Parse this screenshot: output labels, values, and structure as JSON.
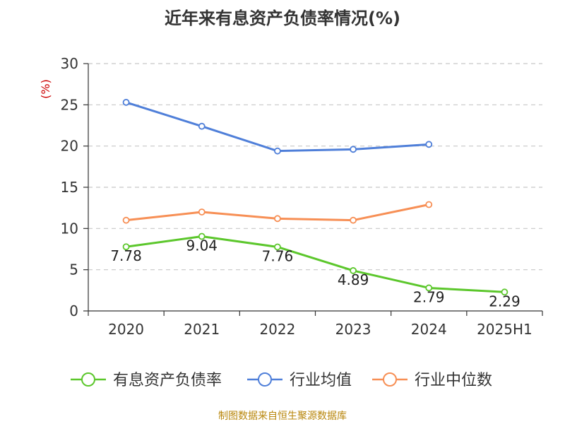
{
  "title": "近年来有息资产负债率情况(%)",
  "source": "制图数据来自恒生聚源数据库",
  "chart_data": {
    "type": "line",
    "title": "近年来有息资产负债率情况(%)",
    "ylabel": "(%)",
    "xlabel": "",
    "categories": [
      "2020",
      "2021",
      "2022",
      "2023",
      "2024",
      "2025H1"
    ],
    "ylim": [
      0,
      30
    ],
    "yticks": [
      0,
      5,
      10,
      15,
      20,
      25,
      30
    ],
    "grid": true,
    "legend": "bottom",
    "series": [
      {
        "name": "有息资产负债率",
        "color": "#5cc72c",
        "values": [
          7.78,
          9.04,
          7.76,
          4.89,
          2.79,
          2.29
        ],
        "labels": [
          "7.78",
          "9.04",
          "7.76",
          "4.89",
          "2.79",
          "2.29"
        ]
      },
      {
        "name": "行业均值",
        "color": "#4f7fd9",
        "values": [
          25.3,
          22.4,
          19.4,
          19.6,
          20.2,
          null
        ]
      },
      {
        "name": "行业中位数",
        "color": "#f78f55",
        "values": [
          11.0,
          12.0,
          11.2,
          11.0,
          12.9,
          null
        ]
      }
    ]
  }
}
